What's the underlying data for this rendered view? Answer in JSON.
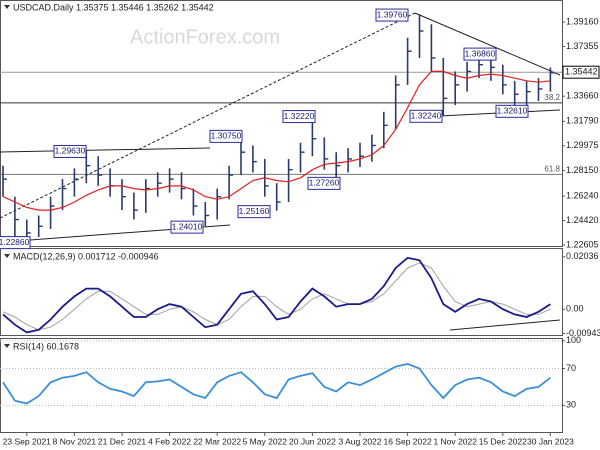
{
  "chart_data": [
    {
      "type": "hlc",
      "title": "USDCAD.Daily 1.35375 1.35446 1.35262 1.35442",
      "watermark": "ActionForex.com",
      "color": "#2a3a6a",
      "high": [
        1.285,
        1.262,
        1.245,
        1.248,
        1.262,
        1.275,
        1.283,
        1.2963,
        1.292,
        1.283,
        1.275,
        1.265,
        1.275,
        1.28,
        1.283,
        1.28,
        1.268,
        1.258,
        1.268,
        1.285,
        1.3075,
        1.3,
        1.29,
        1.272,
        1.29,
        1.302,
        1.3222,
        1.306,
        1.295,
        1.298,
        1.302,
        1.308,
        1.325,
        1.352,
        1.38,
        1.3976,
        1.39,
        1.365,
        1.355,
        1.362,
        1.3686,
        1.368,
        1.36,
        1.348,
        1.348,
        1.35,
        1.358
      ],
      "low": [
        1.262,
        1.2286,
        1.229,
        1.232,
        1.238,
        1.252,
        1.262,
        1.272,
        1.27,
        1.262,
        1.252,
        1.245,
        1.25,
        1.262,
        1.265,
        1.26,
        1.248,
        1.2401,
        1.245,
        1.26,
        1.278,
        1.28,
        1.262,
        1.2516,
        1.258,
        1.28,
        1.292,
        1.282,
        1.2726,
        1.28,
        1.284,
        1.288,
        1.298,
        1.312,
        1.345,
        1.365,
        1.355,
        1.3224,
        1.33,
        1.34,
        1.35,
        1.348,
        1.338,
        1.3261,
        1.33,
        1.333,
        1.34
      ],
      "close": [
        1.275,
        1.245,
        1.235,
        1.24,
        1.255,
        1.268,
        1.275,
        1.285,
        1.278,
        1.27,
        1.262,
        1.252,
        1.268,
        1.272,
        1.275,
        1.268,
        1.255,
        1.248,
        1.262,
        1.278,
        1.295,
        1.288,
        1.27,
        1.258,
        1.282,
        1.295,
        1.305,
        1.29,
        1.285,
        1.29,
        1.292,
        1.3,
        1.315,
        1.345,
        1.37,
        1.385,
        1.365,
        1.335,
        1.345,
        1.355,
        1.36,
        1.358,
        1.345,
        1.338,
        1.34,
        1.342,
        1.354
      ],
      "ma": {
        "color": "#e02020",
        "values": [
          1.262,
          1.258,
          1.254,
          1.252,
          1.252,
          1.254,
          1.258,
          1.263,
          1.267,
          1.27,
          1.27,
          1.268,
          1.267,
          1.268,
          1.27,
          1.27,
          1.267,
          1.262,
          1.26,
          1.262,
          1.268,
          1.274,
          1.276,
          1.274,
          1.273,
          1.276,
          1.282,
          1.286,
          1.287,
          1.288,
          1.29,
          1.293,
          1.3,
          1.312,
          1.328,
          1.345,
          1.355,
          1.355,
          1.352,
          1.35,
          1.352,
          1.353,
          1.352,
          1.35,
          1.348,
          1.347,
          1.348
        ]
      },
      "ylim": [
        1.2246,
        1.4073
      ],
      "yticks": [
        {
          "value": 1.3916,
          "label": "1.39160"
        },
        {
          "value": 1.37355,
          "label": "1.37355"
        },
        {
          "value": 1.3366,
          "label": "1.33660"
        },
        {
          "value": 1.3179,
          "label": "1.31790"
        },
        {
          "value": 1.29975,
          "label": "1.29975"
        },
        {
          "value": 1.2815,
          "label": "1.28150"
        },
        {
          "value": 1.2624,
          "label": "1.26240"
        },
        {
          "value": 1.2442,
          "label": "1.24420"
        },
        {
          "value": 1.22605,
          "label": "1.22605"
        }
      ],
      "last_price": {
        "value": 1.35442,
        "label": "1.35442"
      },
      "annotations": [
        {
          "value": 1.3976,
          "label": "1.39760"
        },
        {
          "value": 1.3686,
          "label": "1.36860"
        },
        {
          "value": 1.3222,
          "label": "1.32220"
        },
        {
          "value": 1.3075,
          "label": "1.30750"
        },
        {
          "value": 1.2963,
          "label": "1.29630"
        },
        {
          "value": 1.2726,
          "label": "1.27260"
        },
        {
          "value": 1.2516,
          "label": "1.25160"
        },
        {
          "value": 1.2401,
          "label": "1.24010"
        },
        {
          "value": 1.2286,
          "label": "1.22860"
        },
        {
          "value": 1.3224,
          "label": "1.32240"
        },
        {
          "value": 1.3261,
          "label": "1.32610"
        }
      ],
      "fib_levels": [
        {
          "ratio": 61.8,
          "price": 1.2785
        },
        {
          "ratio": 38.2,
          "price": 1.3316
        }
      ]
    },
    {
      "type": "line",
      "title": "MACD(12,26,9) 0.001712 -0.000946",
      "series": [
        {
          "color": "#1a1a8c",
          "values": [
            -0.002,
            -0.006,
            -0.009,
            -0.008,
            -0.004,
            0.001,
            0.005,
            0.008,
            0.008,
            0.005,
            0.001,
            -0.003,
            -0.003,
            0.0,
            0.002,
            0.001,
            -0.003,
            -0.007,
            -0.006,
            0.0,
            0.006,
            0.007,
            0.002,
            -0.004,
            -0.003,
            0.003,
            0.008,
            0.005,
            0.001,
            0.002,
            0.002,
            0.004,
            0.009,
            0.016,
            0.02,
            0.019,
            0.012,
            0.002,
            -0.001,
            0.002,
            0.004,
            0.003,
            0.0,
            -0.002,
            -0.003,
            -0.001,
            0.002
          ]
        },
        {
          "color": "#a0a0a0",
          "values": [
            -0.001,
            -0.003,
            -0.006,
            -0.008,
            -0.007,
            -0.004,
            0.0,
            0.004,
            0.007,
            0.007,
            0.004,
            0.001,
            -0.002,
            -0.002,
            0.0,
            0.001,
            -0.001,
            -0.004,
            -0.006,
            -0.004,
            0.001,
            0.005,
            0.005,
            0.001,
            -0.002,
            0.0,
            0.004,
            0.006,
            0.004,
            0.002,
            0.002,
            0.003,
            0.006,
            0.011,
            0.016,
            0.018,
            0.016,
            0.009,
            0.003,
            0.001,
            0.002,
            0.003,
            0.002,
            0.0,
            -0.002,
            -0.002,
            0.0
          ]
        }
      ],
      "ylim": [
        -0.0104,
        0.0234
      ],
      "yticks": [
        {
          "value": 0.02036,
          "label": "0.02036"
        },
        {
          "value": 0,
          "label": "0.00"
        },
        {
          "value": -0.009438,
          "label": "-0.009438"
        }
      ]
    },
    {
      "type": "line",
      "title": "RSI(14) 60.1678",
      "categories": [
        null,
        null,
        "23 Sep 2021",
        null,
        null,
        null,
        "8 Nov 2021",
        null,
        null,
        null,
        "21 Dec 2021",
        null,
        null,
        null,
        "4 Feb 2022",
        null,
        null,
        null,
        "22 Mar 2022",
        null,
        null,
        null,
        "5 May 2022",
        null,
        null,
        null,
        "20 Jun 2022",
        null,
        null,
        null,
        "3 Aug 2022",
        null,
        null,
        null,
        "16 Sep 2022",
        null,
        null,
        null,
        "1 Nov 2022",
        null,
        null,
        null,
        "15 Dec 2022",
        null,
        null,
        null,
        "30 Jan 2023"
      ],
      "series": [
        {
          "color": "#3a8fd8",
          "values": [
            55,
            35,
            32,
            40,
            55,
            60,
            62,
            66,
            55,
            48,
            45,
            40,
            55,
            56,
            58,
            50,
            42,
            38,
            55,
            62,
            66,
            55,
            42,
            38,
            58,
            62,
            65,
            50,
            45,
            55,
            52,
            58,
            65,
            72,
            75,
            70,
            52,
            38,
            52,
            58,
            60,
            55,
            45,
            40,
            48,
            50,
            60
          ]
        }
      ],
      "ylim": [
        0,
        102
      ],
      "yticks": [
        30,
        70,
        100
      ]
    }
  ]
}
